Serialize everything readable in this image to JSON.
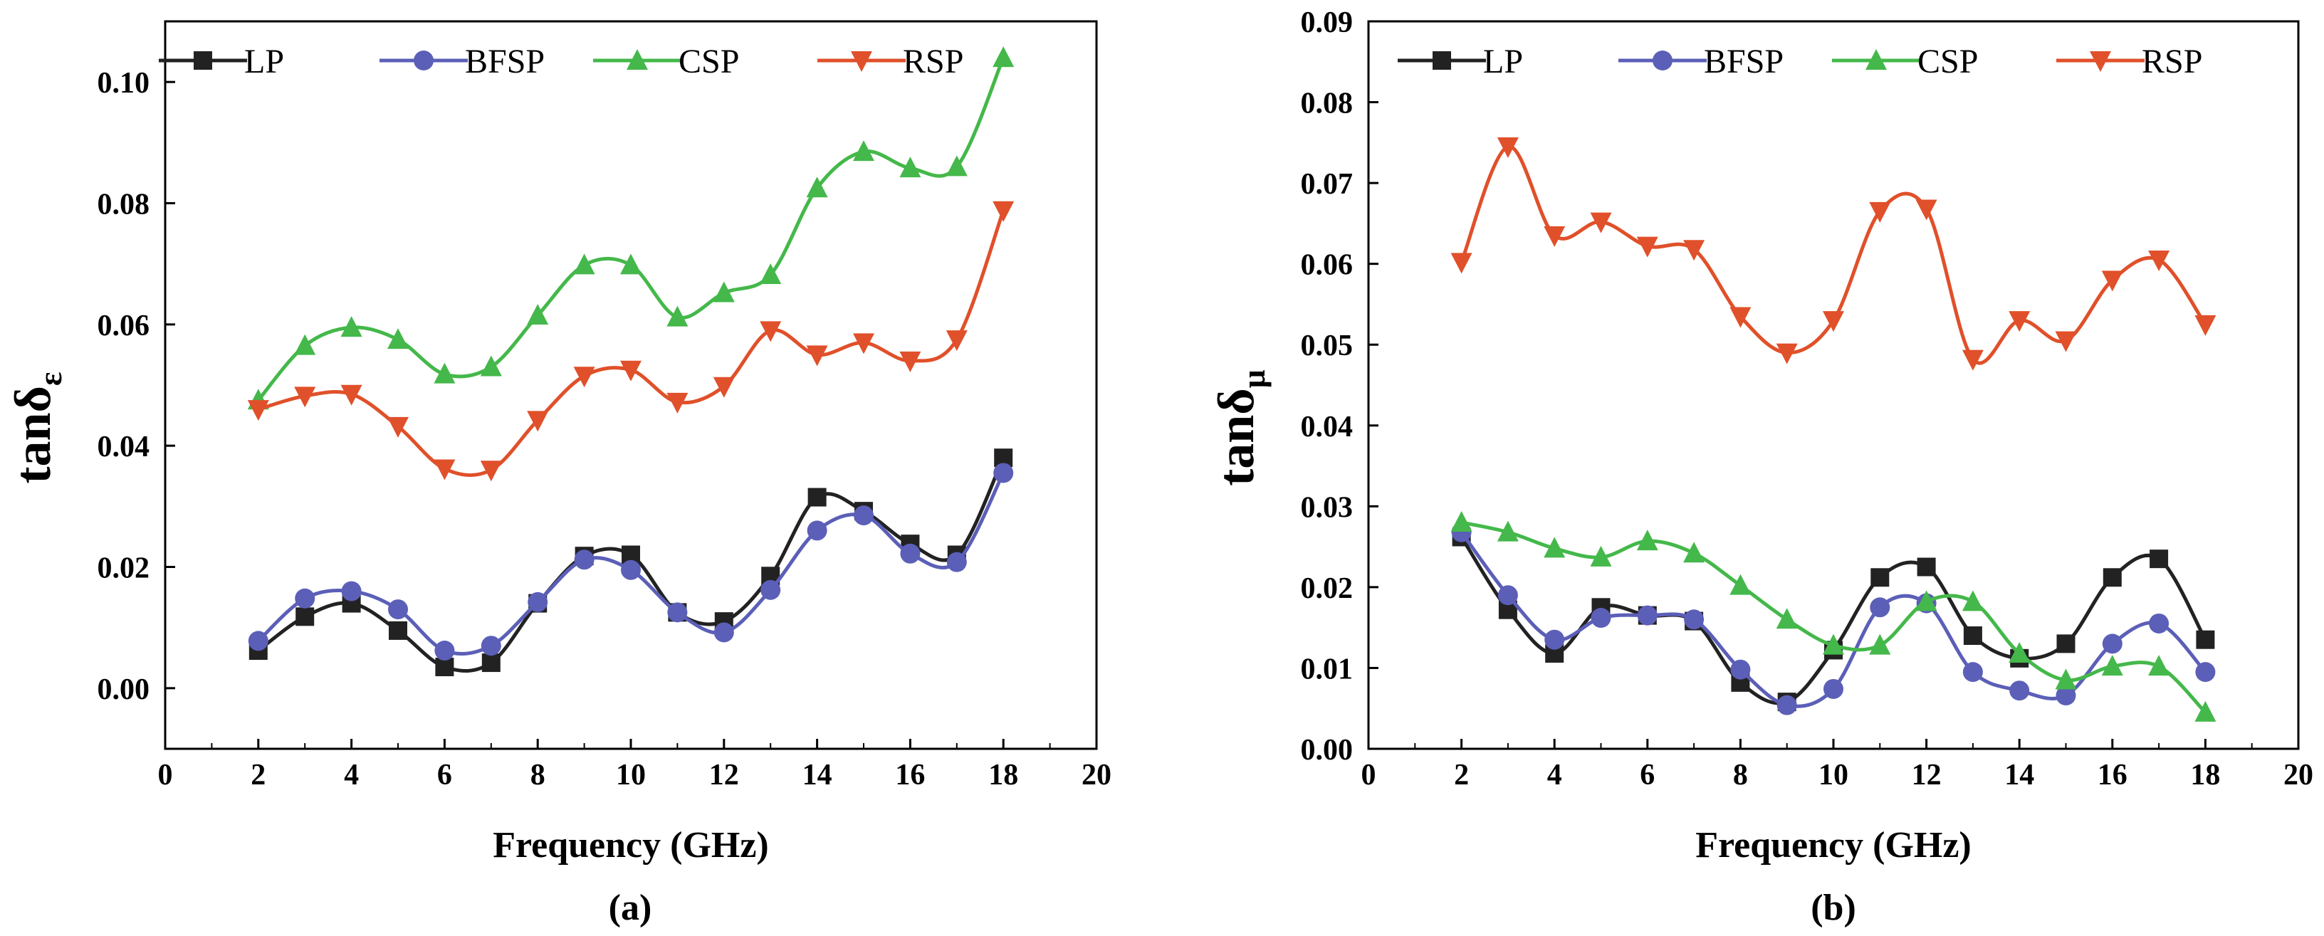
{
  "chart_data": [
    {
      "type": "line",
      "panel_label": "(a)",
      "xlabel": "Frequency (GHz)",
      "ylabel": {
        "main": "tanδ",
        "sub": "ε"
      },
      "xlim": [
        0,
        20
      ],
      "ylim": [
        -0.01,
        0.11
      ],
      "xticks": [
        0,
        2,
        4,
        6,
        8,
        10,
        12,
        14,
        16,
        18,
        20
      ],
      "yticks": [
        0.0,
        0.02,
        0.04,
        0.06,
        0.08,
        0.1
      ],
      "ytick_decimals": 2,
      "legend_position": "top-left",
      "x": [
        2,
        3,
        4,
        5,
        6,
        7,
        8,
        9,
        10,
        11,
        12,
        13,
        14,
        15,
        16,
        17,
        18
      ],
      "series": [
        {
          "name": "LP",
          "color": "#222222",
          "marker": "square",
          "values": [
            0.0062,
            0.0118,
            0.014,
            0.0095,
            0.0035,
            0.0042,
            0.014,
            0.0218,
            0.022,
            0.0125,
            0.011,
            0.0185,
            0.0315,
            0.0292,
            0.0238,
            0.022,
            0.038
          ]
        },
        {
          "name": "BFSP",
          "color": "#5b5fb7",
          "marker": "circle",
          "values": [
            0.0078,
            0.0148,
            0.016,
            0.013,
            0.0062,
            0.007,
            0.0142,
            0.0212,
            0.0195,
            0.0125,
            0.0092,
            0.0162,
            0.026,
            0.0285,
            0.0222,
            0.0208,
            0.0355
          ]
        },
        {
          "name": "CSP",
          "color": "#44b84a",
          "marker": "triangle-up",
          "values": [
            0.0475,
            0.0565,
            0.0595,
            0.0575,
            0.0518,
            0.053,
            0.0615,
            0.0698,
            0.0698,
            0.0612,
            0.0652,
            0.0682,
            0.0825,
            0.0885,
            0.0858,
            0.086,
            0.104
          ]
        },
        {
          "name": "RSP",
          "color": "#e0502a",
          "marker": "triangle-down",
          "values": [
            0.046,
            0.0482,
            0.0485,
            0.0432,
            0.0362,
            0.036,
            0.0442,
            0.0515,
            0.0525,
            0.0472,
            0.0498,
            0.059,
            0.055,
            0.057,
            0.054,
            0.0575,
            0.0788
          ]
        }
      ]
    },
    {
      "type": "line",
      "panel_label": "(b)",
      "xlabel": "Frequency (GHz)",
      "ylabel": {
        "main": "tanδ",
        "sub": "μ"
      },
      "xlim": [
        0,
        20
      ],
      "ylim": [
        0.0,
        0.09
      ],
      "xticks": [
        0,
        2,
        4,
        6,
        8,
        10,
        12,
        14,
        16,
        18,
        20
      ],
      "yticks": [
        0.0,
        0.01,
        0.02,
        0.03,
        0.04,
        0.05,
        0.06,
        0.07,
        0.08,
        0.09
      ],
      "ytick_decimals": 2,
      "legend_position": "top-left",
      "x": [
        2,
        3,
        4,
        5,
        6,
        7,
        8,
        9,
        10,
        11,
        12,
        13,
        14,
        15,
        16,
        17,
        18
      ],
      "series": [
        {
          "name": "LP",
          "color": "#222222",
          "marker": "square",
          "values": [
            0.0262,
            0.0172,
            0.0118,
            0.0175,
            0.0165,
            0.0158,
            0.0082,
            0.0058,
            0.0122,
            0.0212,
            0.0225,
            0.014,
            0.0112,
            0.013,
            0.0212,
            0.0235,
            0.0135
          ]
        },
        {
          "name": "BFSP",
          "color": "#5b5fb7",
          "marker": "circle",
          "values": [
            0.0268,
            0.019,
            0.0135,
            0.0162,
            0.0165,
            0.016,
            0.0098,
            0.0054,
            0.0074,
            0.0175,
            0.018,
            0.0095,
            0.0072,
            0.0066,
            0.013,
            0.0155,
            0.0095
          ]
        },
        {
          "name": "CSP",
          "color": "#44b84a",
          "marker": "triangle-up",
          "values": [
            0.028,
            0.0268,
            0.0248,
            0.0237,
            0.0257,
            0.0242,
            0.0202,
            0.016,
            0.0128,
            0.0128,
            0.0182,
            0.0182,
            0.0118,
            0.0085,
            0.0102,
            0.0102,
            0.0045
          ]
        },
        {
          "name": "RSP",
          "color": "#e0502a",
          "marker": "triangle-down",
          "values": [
            0.0602,
            0.0745,
            0.0635,
            0.0652,
            0.0622,
            0.0618,
            0.0535,
            0.049,
            0.053,
            0.0665,
            0.0668,
            0.0482,
            0.053,
            0.0505,
            0.058,
            0.0605,
            0.0525
          ]
        }
      ]
    }
  ]
}
